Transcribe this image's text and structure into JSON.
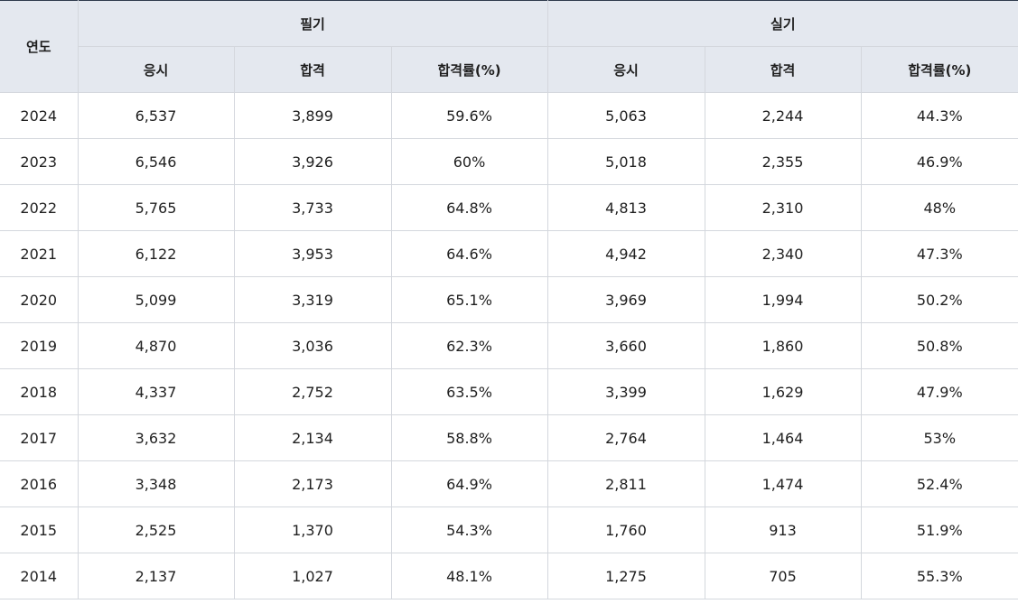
{
  "table": {
    "year_header": "연도",
    "group_headers": [
      "필기",
      "실기"
    ],
    "sub_headers": [
      "응시",
      "합격",
      "합격률(%)",
      "응시",
      "합격",
      "합격률(%)"
    ],
    "rows": [
      [
        "2024",
        "6,537",
        "3,899",
        "59.6%",
        "5,063",
        "2,244",
        "44.3%"
      ],
      [
        "2023",
        "6,546",
        "3,926",
        "60%",
        "5,018",
        "2,355",
        "46.9%"
      ],
      [
        "2022",
        "5,765",
        "3,733",
        "64.8%",
        "4,813",
        "2,310",
        "48%"
      ],
      [
        "2021",
        "6,122",
        "3,953",
        "64.6%",
        "4,942",
        "2,340",
        "47.3%"
      ],
      [
        "2020",
        "5,099",
        "3,319",
        "65.1%",
        "3,969",
        "1,994",
        "50.2%"
      ],
      [
        "2019",
        "4,870",
        "3,036",
        "62.3%",
        "3,660",
        "1,860",
        "50.8%"
      ],
      [
        "2018",
        "4,337",
        "2,752",
        "63.5%",
        "3,399",
        "1,629",
        "47.9%"
      ],
      [
        "2017",
        "3,632",
        "2,134",
        "58.8%",
        "2,764",
        "1,464",
        "53%"
      ],
      [
        "2016",
        "3,348",
        "2,173",
        "64.9%",
        "2,811",
        "1,474",
        "52.4%"
      ],
      [
        "2015",
        "2,525",
        "1,370",
        "54.3%",
        "1,760",
        "913",
        "51.9%"
      ],
      [
        "2014",
        "2,137",
        "1,027",
        "48.1%",
        "1,275",
        "705",
        "55.3%"
      ]
    ]
  },
  "colors": {
    "header_background": "#e4e8ef",
    "border": "#d4d7dd",
    "top_rule": "#2f3b4c",
    "text": "#1f1f1f"
  }
}
